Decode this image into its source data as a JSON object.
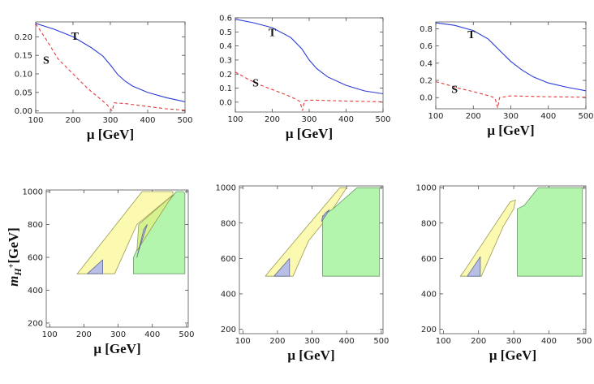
{
  "chart_data": [
    {
      "type": "line",
      "xlabel": "μ [GeV]",
      "xlim": [
        100,
        500
      ],
      "ylim": [
        -0.005,
        0.24
      ],
      "xticks": [
        100,
        200,
        300,
        400,
        500
      ],
      "xtick_labels": [
        "100",
        "200",
        "300",
        "400",
        "500"
      ],
      "yticks": [
        0.0,
        0.05,
        0.1,
        0.15,
        0.2
      ],
      "ytick_labels": [
        "0.00",
        "0.05",
        "0.10",
        "0.15",
        "0.20"
      ],
      "series": [
        {
          "name": "T",
          "label_at": [
            205,
            0.203
          ],
          "color": "#2a3bd6",
          "dash": "solid",
          "x": [
            100,
            150,
            200,
            250,
            280,
            300,
            320,
            340,
            360,
            400,
            450,
            500
          ],
          "y": [
            0.236,
            0.22,
            0.2,
            0.17,
            0.148,
            0.124,
            0.098,
            0.08,
            0.067,
            0.05,
            0.036,
            0.025
          ]
        },
        {
          "name": "S",
          "label_at": [
            128,
            0.138
          ],
          "color": "#e23a3a",
          "dash": "dashed",
          "x": [
            100,
            130,
            160,
            200,
            240,
            270,
            290,
            300,
            305,
            310,
            340,
            400,
            450,
            500
          ],
          "y": [
            0.235,
            0.19,
            0.14,
            0.1,
            0.06,
            0.035,
            0.018,
            0.006,
            0.0,
            0.022,
            0.02,
            0.012,
            0.006,
            0.002
          ]
        }
      ]
    },
    {
      "type": "line",
      "xlabel": "μ [GeV]",
      "xlim": [
        100,
        500
      ],
      "ylim": [
        -0.07,
        0.6
      ],
      "xticks": [
        100,
        200,
        300,
        400,
        500
      ],
      "xtick_labels": [
        "100",
        "200",
        "300",
        "400",
        "500"
      ],
      "yticks": [
        0.0,
        0.1,
        0.2,
        0.3,
        0.4,
        0.5,
        0.6
      ],
      "ytick_labels": [
        "0.0",
        "0.1",
        "0.2",
        "0.3",
        "0.4",
        "0.5",
        "0.6"
      ],
      "series": [
        {
          "name": "T",
          "label_at": [
            200,
            0.5
          ],
          "color": "#2a3bd6",
          "dash": "solid",
          "x": [
            100,
            150,
            200,
            250,
            280,
            300,
            320,
            350,
            400,
            450,
            500
          ],
          "y": [
            0.59,
            0.565,
            0.53,
            0.46,
            0.38,
            0.3,
            0.24,
            0.18,
            0.12,
            0.08,
            0.06
          ]
        },
        {
          "name": "S",
          "label_at": [
            155,
            0.14
          ],
          "color": "#e23a3a",
          "dash": "dashed",
          "x": [
            100,
            130,
            160,
            200,
            240,
            265,
            275,
            282,
            287,
            300,
            350,
            400,
            500
          ],
          "y": [
            0.215,
            0.17,
            0.13,
            0.09,
            0.05,
            0.02,
            0.005,
            -0.06,
            0.01,
            0.015,
            0.012,
            0.008,
            0.003
          ]
        }
      ]
    },
    {
      "type": "line",
      "xlabel": "μ [GeV]",
      "xlim": [
        100,
        500
      ],
      "ylim": [
        -0.13,
        0.88
      ],
      "xticks": [
        100,
        200,
        300,
        400,
        500
      ],
      "xtick_labels": [
        "100",
        "200",
        "300",
        "400",
        "500"
      ],
      "yticks": [
        0.0,
        0.2,
        0.4,
        0.6,
        0.8
      ],
      "ytick_labels": [
        "0.0",
        "0.2",
        "0.4",
        "0.6",
        "0.8"
      ],
      "series": [
        {
          "name": "T",
          "label_at": [
            195,
            0.74
          ],
          "color": "#2a3bd6",
          "dash": "solid",
          "x": [
            100,
            150,
            200,
            240,
            270,
            300,
            330,
            360,
            400,
            450,
            500
          ],
          "y": [
            0.87,
            0.84,
            0.78,
            0.68,
            0.55,
            0.42,
            0.32,
            0.24,
            0.17,
            0.12,
            0.08
          ]
        },
        {
          "name": "S",
          "label_at": [
            150,
            0.1
          ],
          "color": "#e23a3a",
          "dash": "dashed",
          "x": [
            100,
            130,
            160,
            200,
            230,
            250,
            258,
            265,
            270,
            300,
            400,
            500
          ],
          "y": [
            0.185,
            0.15,
            0.11,
            0.07,
            0.035,
            0.01,
            -0.01,
            -0.12,
            0.0,
            0.02,
            0.01,
            0.005
          ]
        }
      ]
    },
    {
      "type": "area",
      "xlabel": "μ [GeV]",
      "ylabel": "m_{H+} [GeV]",
      "ylabel_main": "m",
      "ylabel_sub": "H",
      "ylabel_sup": "+",
      "ylabel_rest": "[GeV]",
      "xlim": [
        90,
        505
      ],
      "ylim": [
        175,
        1010
      ],
      "xticks": [
        100,
        200,
        300,
        400,
        500
      ],
      "xtick_labels": [
        "100",
        "200",
        "300",
        "400",
        "500"
      ],
      "yticks": [
        200,
        400,
        600,
        800,
        1000
      ],
      "ytick_labels": [
        "200",
        "400",
        "600",
        "800",
        "1000"
      ],
      "regions": [
        {
          "name": "yellow-region",
          "fill": "#fbfab0",
          "stroke": "#9a9a50",
          "points": [
            [
              180,
              500
            ],
            [
              190,
              525
            ],
            [
              370,
              1000
            ],
            [
              460,
              1000
            ],
            [
              460,
              980
            ],
            [
              355,
              800
            ],
            [
              290,
              500
            ]
          ]
        },
        {
          "name": "green-region",
          "fill": "#b3f5ad",
          "stroke": "#6a9a66",
          "points": [
            [
              345,
              500
            ],
            [
              345,
              600
            ],
            [
              380,
              760
            ],
            [
              470,
              1000
            ],
            [
              490,
              1000
            ],
            [
              495,
              990
            ],
            [
              495,
              500
            ]
          ]
        },
        {
          "name": "yellow-green-overlap",
          "fill": "#d6f28e",
          "stroke": "#9a9a50",
          "points": [
            [
              355,
              640
            ],
            [
              395,
              770
            ],
            [
              460,
              980
            ],
            [
              360,
              800
            ]
          ]
        },
        {
          "name": "blue-region",
          "fill": "#b8bfe6",
          "stroke": "#606890",
          "points": [
            [
              210,
              500
            ],
            [
              255,
              500
            ],
            [
              255,
              585
            ]
          ]
        },
        {
          "name": "blue-region",
          "fill": "#b8bfe6",
          "stroke": "#606890",
          "points": [
            [
              355,
              600
            ],
            [
              375,
              770
            ],
            [
              385,
              800
            ],
            [
              360,
              640
            ]
          ]
        }
      ]
    },
    {
      "type": "area",
      "xlabel": "μ [GeV]",
      "xlim": [
        90,
        505
      ],
      "ylim": [
        175,
        1010
      ],
      "xticks": [
        100,
        200,
        300,
        400,
        500
      ],
      "xtick_labels": [
        "100",
        "200",
        "300",
        "400",
        "500"
      ],
      "yticks": [
        200,
        400,
        600,
        800,
        1000
      ],
      "ytick_labels": [
        "200",
        "400",
        "600",
        "800",
        "1000"
      ],
      "regions": [
        {
          "name": "yellow-region",
          "fill": "#fbfab0",
          "stroke": "#9a9a50",
          "points": [
            [
              165,
              500
            ],
            [
              175,
              525
            ],
            [
              380,
              1000
            ],
            [
              400,
              1000
            ],
            [
              340,
              820
            ],
            [
              290,
              700
            ],
            [
              245,
              500
            ]
          ]
        },
        {
          "name": "green-region",
          "fill": "#b3f5ad",
          "stroke": "#6a9a66",
          "points": [
            [
              330,
              500
            ],
            [
              330,
              840
            ],
            [
              360,
              880
            ],
            [
              430,
              1000
            ],
            [
              495,
              1000
            ],
            [
              495,
              500
            ]
          ]
        },
        {
          "name": "blue-region",
          "fill": "#b8bfe6",
          "stroke": "#606890",
          "points": [
            [
              190,
              500
            ],
            [
              235,
              500
            ],
            [
              235,
              600
            ]
          ]
        },
        {
          "name": "blue-region",
          "fill": "#b8bfe6",
          "stroke": "#606890",
          "points": [
            [
              328,
              810
            ],
            [
              350,
              875
            ],
            [
              340,
              860
            ],
            [
              330,
              835
            ]
          ]
        }
      ]
    },
    {
      "type": "area",
      "xlabel": "μ [GeV]",
      "xlim": [
        90,
        505
      ],
      "ylim": [
        175,
        1010
      ],
      "xticks": [
        100,
        200,
        300,
        400,
        500
      ],
      "xtick_labels": [
        "100",
        "200",
        "300",
        "400",
        "500"
      ],
      "yticks": [
        200,
        400,
        600,
        800,
        1000
      ],
      "ytick_labels": [
        "200",
        "400",
        "600",
        "800",
        "1000"
      ],
      "regions": [
        {
          "name": "yellow-region",
          "fill": "#fbfab0",
          "stroke": "#9a9a50",
          "points": [
            [
              148,
              500
            ],
            [
              158,
              525
            ],
            [
              290,
              920
            ],
            [
              305,
              930
            ],
            [
              300,
              880
            ],
            [
              270,
              780
            ],
            [
              208,
              500
            ]
          ]
        },
        {
          "name": "green-region",
          "fill": "#b3f5ad",
          "stroke": "#6a9a66",
          "points": [
            [
              310,
              500
            ],
            [
              310,
              880
            ],
            [
              330,
              900
            ],
            [
              370,
              1000
            ],
            [
              495,
              1000
            ],
            [
              495,
              500
            ]
          ]
        },
        {
          "name": "blue-region",
          "fill": "#b8bfe6",
          "stroke": "#606890",
          "points": [
            [
              168,
              500
            ],
            [
              205,
              500
            ],
            [
              205,
              610
            ]
          ]
        }
      ]
    }
  ]
}
